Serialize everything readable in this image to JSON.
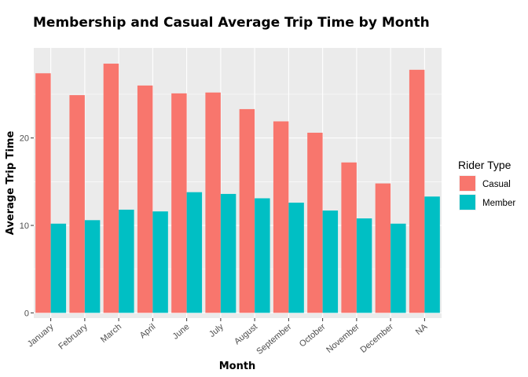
{
  "chart_data": {
    "type": "bar",
    "title": "Membership and Casual Average Trip Time by Month",
    "xlabel": "Month",
    "ylabel": "Average Trip Time",
    "categories": [
      "January",
      "February",
      "March",
      "April",
      "June",
      "July",
      "August",
      "September",
      "October",
      "November",
      "December",
      "NA"
    ],
    "series": [
      {
        "name": "Casual",
        "color": "#F8766D",
        "values": [
          27.4,
          24.9,
          28.5,
          26.0,
          25.1,
          25.2,
          23.3,
          21.9,
          20.6,
          17.2,
          14.8,
          27.8
        ]
      },
      {
        "name": "Member",
        "color": "#00BFC4",
        "values": [
          10.2,
          10.6,
          11.8,
          11.6,
          13.8,
          13.6,
          13.1,
          12.6,
          11.7,
          10.8,
          10.2,
          13.3
        ]
      }
    ],
    "ylim": [
      -0.6,
      30.3
    ],
    "yticks": [
      "0",
      "10",
      "20"
    ],
    "grid": true,
    "legend": {
      "title": "Rider Type",
      "placement": "right"
    },
    "colors": {
      "panel": "#EBEBEB",
      "grid": "#FFFFFF"
    }
  }
}
